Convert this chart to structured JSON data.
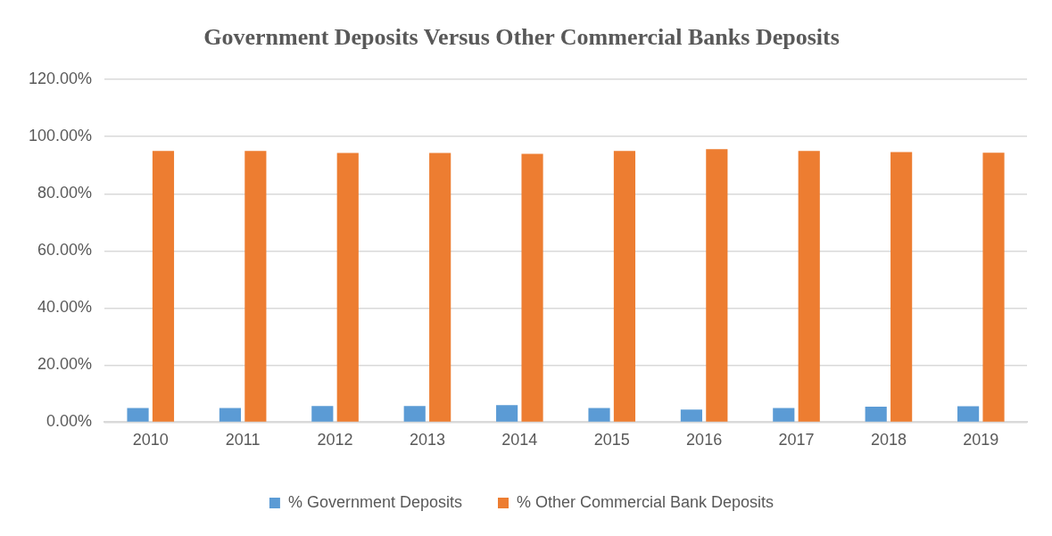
{
  "chart_data": {
    "type": "bar",
    "title": "Government Deposits Versus Other Commercial Banks Deposits",
    "categories": [
      "2010",
      "2011",
      "2012",
      "2013",
      "2014",
      "2015",
      "2016",
      "2017",
      "2018",
      "2019"
    ],
    "series": [
      {
        "name": "% Government Deposits",
        "color": "#5b9bd5",
        "values": [
          5.0,
          5.0,
          5.7,
          5.7,
          6.0,
          5.0,
          4.4,
          5.0,
          5.4,
          5.6
        ]
      },
      {
        "name": "% Other Commercial Bank Deposits",
        "color": "#ed7d31",
        "values": [
          95.0,
          95.0,
          94.3,
          94.3,
          94.0,
          95.0,
          95.6,
          95.0,
          94.6,
          94.4
        ]
      }
    ],
    "ylim": [
      0,
      120
    ],
    "yticks": [
      {
        "value": 0,
        "label": "0.00%"
      },
      {
        "value": 20,
        "label": "20.00%"
      },
      {
        "value": 40,
        "label": "40.00%"
      },
      {
        "value": 60,
        "label": "60.00%"
      },
      {
        "value": 80,
        "label": "80.00%"
      },
      {
        "value": 100,
        "label": "100.00%"
      },
      {
        "value": 120,
        "label": "120.00%"
      }
    ],
    "grid": "y",
    "legend": "bottom"
  }
}
